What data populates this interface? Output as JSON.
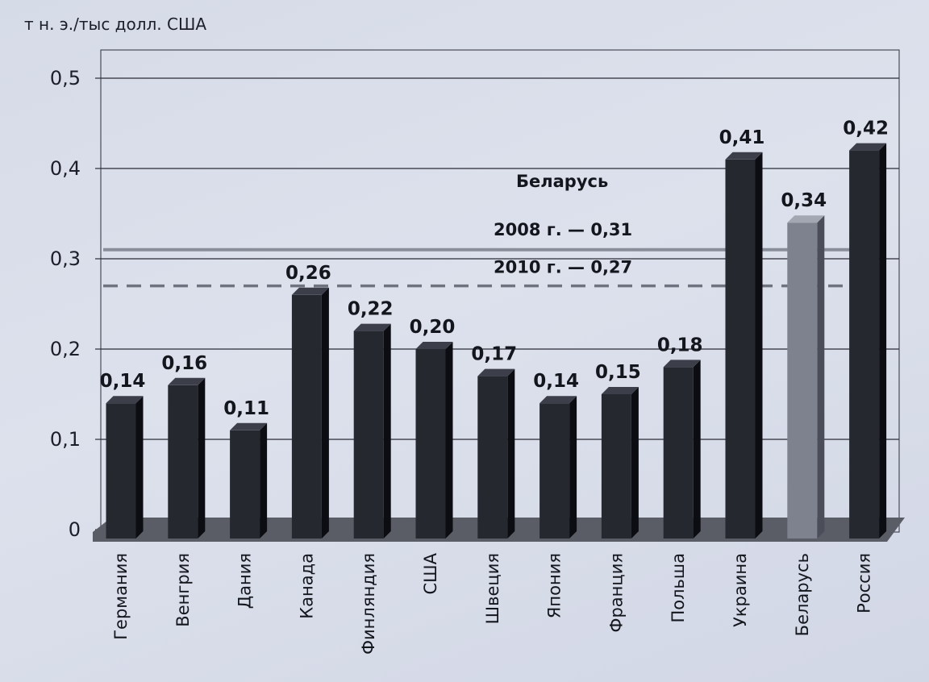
{
  "chart_data": {
    "type": "bar",
    "unit_label": "т н. э./тыс долл. США",
    "categories": [
      "Германия",
      "Венгрия",
      "Дания",
      "Канада",
      "Финляндия",
      "США",
      "Швеция",
      "Япония",
      "Франция",
      "Польша",
      "Украина",
      "Беларусь",
      "Россия"
    ],
    "values": [
      0.14,
      0.16,
      0.11,
      0.26,
      0.22,
      0.2,
      0.17,
      0.14,
      0.15,
      0.18,
      0.41,
      0.34,
      0.42
    ],
    "value_labels": [
      "0,14",
      "0,16",
      "0,11",
      "0,26",
      "0,22",
      "0,20",
      "0,17",
      "0,14",
      "0,15",
      "0,18",
      "0,41",
      "0,34",
      "0,42"
    ],
    "yticks": [
      0,
      0.1,
      0.2,
      0.3,
      0.4,
      0.5
    ],
    "ytick_labels": [
      "0",
      "0,1",
      "0,2",
      "0,3",
      "0,4",
      "0,5"
    ],
    "ylim": [
      0,
      0.5
    ],
    "grid": true,
    "highlight_category": "Беларусь",
    "colors": {
      "bar": "#262830",
      "bar_highlight": "#7e828e",
      "grid": "#2a2c36",
      "floor": "#5a5c66"
    },
    "reference_lines": [
      {
        "value": 0.31,
        "style": "solid",
        "label": "2008 г. — 0,31"
      },
      {
        "value": 0.27,
        "style": "dashed",
        "label": "2010 г. — 0,27"
      }
    ],
    "reference_title": "Беларусь"
  }
}
